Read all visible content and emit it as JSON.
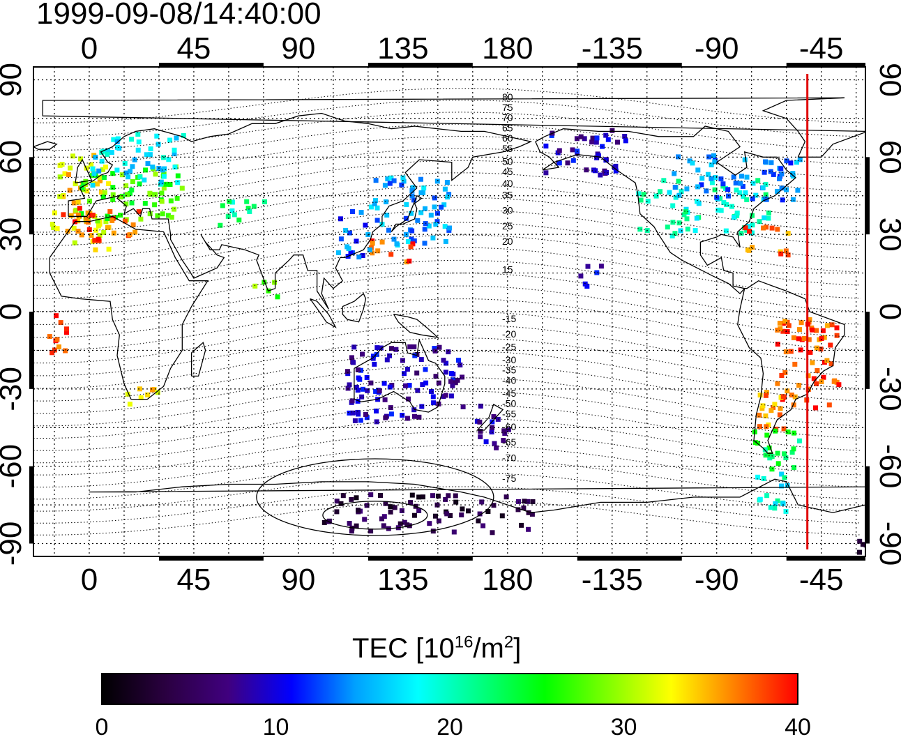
{
  "timestamp": "1999-09-08/14:40:00",
  "map": {
    "projection": "equirectangular",
    "lon_range": [
      -24,
      334
    ],
    "lat_range": [
      -95,
      95
    ],
    "gridlines": "dotted",
    "x_tick_labels": [
      "0",
      "45",
      "90",
      "135",
      "180",
      "-135",
      "-90",
      "-45"
    ],
    "y_tick_labels": [
      "90",
      "60",
      "30",
      "0",
      "-30",
      "-60",
      "-90"
    ],
    "terminator_longitude": -51,
    "terminator_color": "#e00000",
    "magnetic_latitude_labels": [
      "80",
      "75",
      "70",
      "65",
      "60",
      "55",
      "50",
      "45",
      "40",
      "35",
      "30",
      "25",
      "20",
      "15",
      "-15",
      "-20",
      "-25",
      "-30",
      "-35",
      "-40",
      "-45",
      "-50",
      "-55",
      "-60",
      "-65",
      "-70",
      "-75"
    ]
  },
  "colorbar": {
    "title_main": "TEC  [10",
    "title_exp1": "16",
    "title_mid": "/m",
    "title_exp2": "2",
    "title_end": "]",
    "min": 0,
    "max": 40,
    "tick_labels": [
      "0",
      "10",
      "20",
      "30",
      "40"
    ],
    "colormap": [
      "#000000",
      "#2a0040",
      "#40007f",
      "#0000ff",
      "#00a0ff",
      "#00ffff",
      "#00ff80",
      "#00ff00",
      "#80ff00",
      "#ffff00",
      "#ff8000",
      "#ff0000"
    ]
  },
  "chart_data": {
    "type": "heatmap",
    "value_name": "TEC",
    "regions": [
      {
        "lon": [
          -17,
          8
        ],
        "lat": [
          24,
          62
        ],
        "tec": 33
      },
      {
        "lon": [
          -5,
          40
        ],
        "lat": [
          36,
          58
        ],
        "tec": 27
      },
      {
        "lon": [
          0,
          40
        ],
        "lat": [
          50,
          70
        ],
        "tec": 17
      },
      {
        "lon": [
          -17,
          22
        ],
        "lat": [
          28,
          42
        ],
        "tec": 38
      },
      {
        "lon": [
          55,
          75
        ],
        "lat": [
          34,
          44
        ],
        "tec": 21
      },
      {
        "lon": [
          120,
          155
        ],
        "lat": [
          26,
          54
        ],
        "tec": 15
      },
      {
        "lon": [
          120,
          140
        ],
        "lat": [
          18,
          30
        ],
        "tec": 38
      },
      {
        "lon": [
          105,
          120
        ],
        "lat": [
          20,
          40
        ],
        "tec": 13
      },
      {
        "lon": [
          -125,
          -68
        ],
        "lat": [
          30,
          52
        ],
        "tec": 20
      },
      {
        "lon": [
          -110,
          -55
        ],
        "lat": [
          44,
          62
        ],
        "tec": 14
      },
      {
        "lon": [
          -165,
          -130
        ],
        "lat": [
          54,
          72
        ],
        "tec": 9
      },
      {
        "lon": [
          -80,
          -60
        ],
        "lat": [
          22,
          34
        ],
        "tec": 37
      },
      {
        "lon": [
          -65,
          -38
        ],
        "lat": [
          -38,
          -2
        ],
        "tec": 38
      },
      {
        "lon": [
          -75,
          -55
        ],
        "lat": [
          -45,
          -30
        ],
        "tec": 36
      },
      {
        "lon": [
          -75,
          -55
        ],
        "lat": [
          -62,
          -45
        ],
        "tec": 23
      },
      {
        "lon": [
          -75,
          -60
        ],
        "lat": [
          -78,
          -62
        ],
        "tec": 19
      },
      {
        "lon": [
          110,
          160
        ],
        "lat": [
          -42,
          -12
        ],
        "tec": 9
      },
      {
        "lon": [
          165,
          180
        ],
        "lat": [
          -52,
          -35
        ],
        "tec": 9
      },
      {
        "lon": [
          15,
          30
        ],
        "lat": [
          -36,
          -28
        ],
        "tec": 33
      },
      {
        "lon": [
          70,
          80
        ],
        "lat": [
          5,
          14
        ],
        "tec": 28
      },
      {
        "lon": [
          -20,
          -10
        ],
        "lat": [
          -15,
          0
        ],
        "tec": 38
      },
      {
        "lon": [
          -150,
          -140
        ],
        "lat": [
          10,
          20
        ],
        "tec": 9
      },
      {
        "lon": [
          -25,
          330
        ],
        "lat": [
          -93,
          -88
        ],
        "tec": 5
      },
      {
        "lon": [
          100,
          190
        ],
        "lat": [
          -85,
          -70
        ],
        "tec": 4
      }
    ]
  }
}
